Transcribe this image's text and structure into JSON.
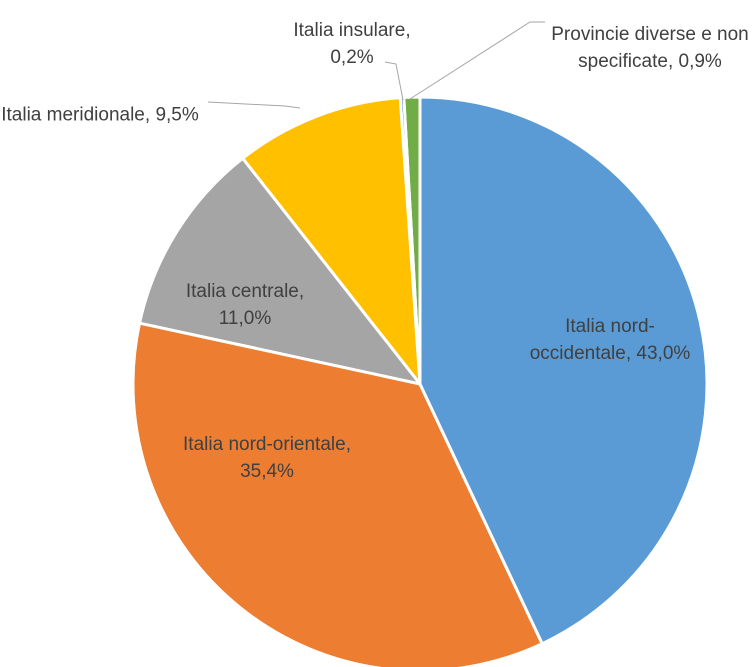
{
  "chart_data": {
    "type": "pie",
    "categories": [
      "Italia nord-occidentale",
      "Italia nord-orientale",
      "Italia centrale",
      "Italia meridionale",
      "Italia insulare",
      "Provincie diverse e non specificate"
    ],
    "values": [
      43.0,
      35.4,
      11.0,
      9.5,
      0.2,
      0.9
    ],
    "value_labels": [
      "43,0%",
      "35,4%",
      "11,0%",
      "9,5%",
      "0,2%",
      "0,9%"
    ],
    "label_separator": ", ",
    "colors": [
      "#5b9bd5",
      "#ed7d31",
      "#a5a5a5",
      "#ffc000",
      "#4472c4",
      "#70ad47"
    ]
  }
}
